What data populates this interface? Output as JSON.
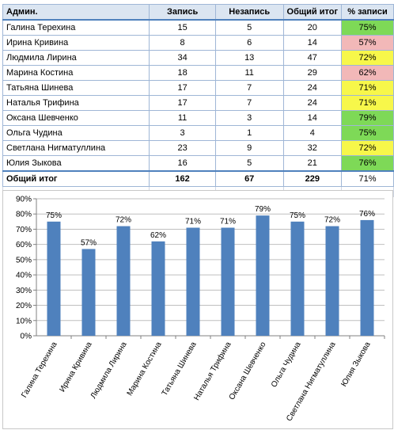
{
  "table": {
    "headers": [
      "Админ.",
      "Запись",
      "Незапись",
      "Общий итог",
      "% записи"
    ],
    "rows": [
      {
        "name": "Галина Терехина",
        "zapis": "15",
        "nezapis": "5",
        "total": "20",
        "pct": "75%",
        "color": "#7ed957"
      },
      {
        "name": "Ирина Кривина",
        "zapis": "8",
        "nezapis": "6",
        "total": "14",
        "pct": "57%",
        "color": "#f2b8b8"
      },
      {
        "name": "Людмила Лирина",
        "zapis": "34",
        "nezapis": "13",
        "total": "47",
        "pct": "72%",
        "color": "#f7f74a"
      },
      {
        "name": "Марина Костина",
        "zapis": "18",
        "nezapis": "11",
        "total": "29",
        "pct": "62%",
        "color": "#f2b8b8"
      },
      {
        "name": "Татьяна Шинева",
        "zapis": "17",
        "nezapis": "7",
        "total": "24",
        "pct": "71%",
        "color": "#f7f74a"
      },
      {
        "name": "Наталья Трифина",
        "zapis": "17",
        "nezapis": "7",
        "total": "24",
        "pct": "71%",
        "color": "#f7f74a"
      },
      {
        "name": "Оксана Шевченко",
        "zapis": "11",
        "nezapis": "3",
        "total": "14",
        "pct": "79%",
        "color": "#7ed957"
      },
      {
        "name": "Ольга Чудина",
        "zapis": "3",
        "nezapis": "1",
        "total": "4",
        "pct": "75%",
        "color": "#7ed957"
      },
      {
        "name": "Светлана Нигматуллина",
        "zapis": "23",
        "nezapis": "9",
        "total": "32",
        "pct": "72%",
        "color": "#f7f74a"
      },
      {
        "name": "Юлия Зыкова",
        "zapis": "16",
        "nezapis": "5",
        "total": "21",
        "pct": "76%",
        "color": "#7ed957"
      }
    ],
    "total_row": {
      "name": "Общий итог",
      "zapis": "162",
      "nezapis": "67",
      "total": "229",
      "pct": "71%"
    }
  },
  "chart_data": {
    "type": "bar",
    "categories": [
      "Галина Терехина",
      "Ирина Кривина",
      "Людмила Лирина",
      "Марина Костина",
      "Татьяна Шинева",
      "Наталья Трифина",
      "Оксана Шевченко",
      "Ольга Чудина",
      "Светлана Нигматуллина",
      "Юлия Зыкова"
    ],
    "values": [
      75,
      57,
      72,
      62,
      71,
      71,
      79,
      75,
      72,
      76
    ],
    "data_labels": [
      "75%",
      "57%",
      "72%",
      "62%",
      "71%",
      "71%",
      "79%",
      "75%",
      "72%",
      "76%"
    ],
    "ylim": [
      0,
      90
    ],
    "yticks": [
      "0%",
      "10%",
      "20%",
      "30%",
      "40%",
      "50%",
      "60%",
      "70%",
      "80%",
      "90%"
    ],
    "title": "",
    "xlabel": "",
    "ylabel": "",
    "grid": true,
    "legend": "none",
    "bar_color": "#4f81bd"
  }
}
